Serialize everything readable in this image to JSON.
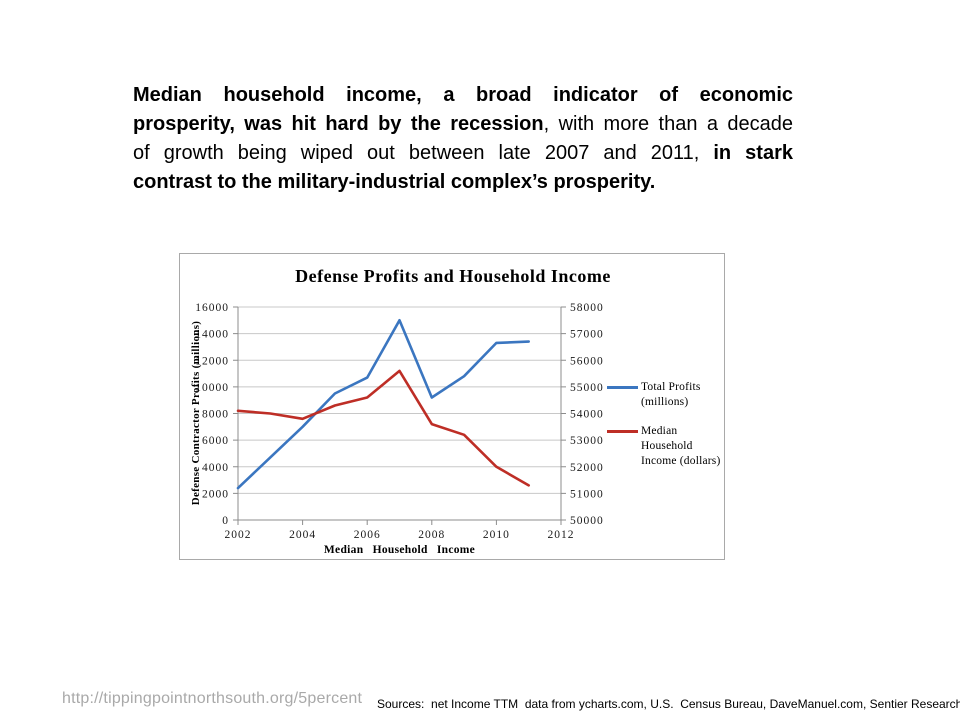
{
  "slide": {
    "paragraph": {
      "lines": [
        {
          "segments": [
            {
              "text": "Median household income, a broad indicator of economic",
              "bold": true
            }
          ]
        },
        {
          "segments": [
            {
              "text": "prosperity, was hit hard by the recession",
              "bold": true
            },
            {
              "text": ", with more than a decade",
              "bold": false
            }
          ]
        },
        {
          "segments": [
            {
              "text": "of growth being wiped out between late 2007 and 2011, ",
              "bold": false
            },
            {
              "text": "in stark",
              "bold": true
            }
          ]
        },
        {
          "segments": [
            {
              "text": "contrast to the military-industrial complex’s prosperity.",
              "bold": true
            }
          ]
        }
      ]
    },
    "footer": {
      "url": "http://tippingpointnorthsouth.org/5percent",
      "sources": "Sources:  net Income TTM  data from ycharts.com, U.S.  Census Bureau, DaveManuel.com, Sentier Research"
    }
  },
  "chart_data": {
    "type": "line",
    "title": "Defense Profits and Household Income",
    "x_axis_title": "Median Household Income",
    "left_axis_title": "Defense Contractor Profits (millions)",
    "x": [
      2002,
      2003,
      2004,
      2005,
      2006,
      2007,
      2008,
      2009,
      2010,
      2011
    ],
    "x_ticks": [
      2002,
      2004,
      2006,
      2008,
      2010,
      2012
    ],
    "left_axis": {
      "min": 0,
      "max": 16000,
      "step": 2000
    },
    "right_axis": {
      "min": 50000,
      "max": 58000,
      "step": 1000
    },
    "grid": true,
    "legend_position": "right",
    "series": [
      {
        "name": "Total Profits (millions)",
        "legend_lines": [
          "Total Profits",
          "(millions)"
        ],
        "axis": "left",
        "color": "#3b76c0",
        "values": [
          2400,
          4700,
          7000,
          9500,
          10700,
          15000,
          9200,
          10800,
          13300,
          13400
        ]
      },
      {
        "name": "Median Household Income (dollars)",
        "legend_lines": [
          "Median",
          "Household",
          "Income (dollars)"
        ],
        "axis": "right",
        "color": "#be2e26",
        "values": [
          54100,
          54000,
          53800,
          54300,
          54600,
          55600,
          53600,
          53200,
          52000,
          51300
        ]
      }
    ],
    "colors": {
      "gridline": "#c8c8c8",
      "axis": "#8c8c8c",
      "tick_text": "#1a1a1a"
    }
  }
}
